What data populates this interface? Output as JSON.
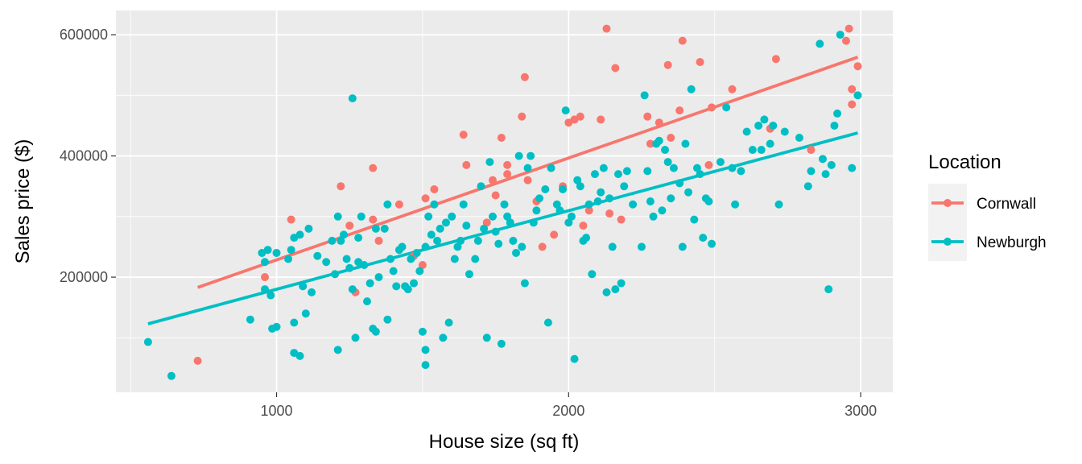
{
  "chart_data": {
    "type": "scatter",
    "xlabel": "House size (sq ft)",
    "ylabel": "Sales price ($)",
    "xlim": [
      450,
      3110
    ],
    "ylim": [
      10000,
      640000
    ],
    "x_ticks": [
      1000,
      2000,
      3000
    ],
    "x_tick_labels": [
      "1000",
      "2000",
      "3000"
    ],
    "y_ticks": [
      200000,
      400000,
      600000
    ],
    "y_tick_labels": [
      "200000",
      "400000",
      "600000"
    ],
    "grid": true,
    "legend": {
      "title": "Location",
      "position": "right"
    },
    "series": [
      {
        "name": "Cornwall",
        "color": "#F8766D",
        "points": [
          [
            730,
            62000
          ],
          [
            960,
            200000
          ],
          [
            1050,
            295000
          ],
          [
            1220,
            350000
          ],
          [
            1250,
            285000
          ],
          [
            1270,
            175000
          ],
          [
            1330,
            380000
          ],
          [
            1330,
            295000
          ],
          [
            1350,
            260000
          ],
          [
            1420,
            320000
          ],
          [
            1470,
            235000
          ],
          [
            1500,
            220000
          ],
          [
            1510,
            330000
          ],
          [
            1540,
            345000
          ],
          [
            1640,
            435000
          ],
          [
            1650,
            385000
          ],
          [
            1720,
            290000
          ],
          [
            1740,
            360000
          ],
          [
            1750,
            335000
          ],
          [
            1770,
            430000
          ],
          [
            1790,
            385000
          ],
          [
            1790,
            370000
          ],
          [
            1840,
            465000
          ],
          [
            1850,
            530000
          ],
          [
            1860,
            360000
          ],
          [
            1890,
            325000
          ],
          [
            1910,
            250000
          ],
          [
            1950,
            270000
          ],
          [
            1980,
            350000
          ],
          [
            2000,
            455000
          ],
          [
            2020,
            460000
          ],
          [
            2040,
            465000
          ],
          [
            2050,
            285000
          ],
          [
            2070,
            310000
          ],
          [
            2110,
            460000
          ],
          [
            2130,
            610000
          ],
          [
            2140,
            305000
          ],
          [
            2160,
            545000
          ],
          [
            2180,
            295000
          ],
          [
            2270,
            465000
          ],
          [
            2280,
            420000
          ],
          [
            2310,
            455000
          ],
          [
            2340,
            550000
          ],
          [
            2350,
            430000
          ],
          [
            2380,
            475000
          ],
          [
            2390,
            590000
          ],
          [
            2450,
            555000
          ],
          [
            2480,
            385000
          ],
          [
            2490,
            480000
          ],
          [
            2560,
            510000
          ],
          [
            2690,
            445000
          ],
          [
            2710,
            560000
          ],
          [
            2830,
            410000
          ],
          [
            2950,
            590000
          ],
          [
            2960,
            610000
          ],
          [
            2970,
            510000
          ],
          [
            2970,
            485000
          ],
          [
            2990,
            548000
          ]
        ],
        "fit": [
          [
            730,
            183000
          ],
          [
            2990,
            563000
          ]
        ]
      },
      {
        "name": "Newburgh",
        "color": "#00BFC4",
        "points": [
          [
            560,
            93000
          ],
          [
            640,
            37000
          ],
          [
            910,
            130000
          ],
          [
            950,
            240000
          ],
          [
            960,
            225000
          ],
          [
            960,
            180000
          ],
          [
            970,
            245000
          ],
          [
            980,
            170000
          ],
          [
            985,
            115000
          ],
          [
            1000,
            118000
          ],
          [
            1000,
            240000
          ],
          [
            1040,
            230000
          ],
          [
            1050,
            245000
          ],
          [
            1060,
            265000
          ],
          [
            1060,
            75000
          ],
          [
            1060,
            125000
          ],
          [
            1080,
            70000
          ],
          [
            1080,
            270000
          ],
          [
            1090,
            185000
          ],
          [
            1100,
            140000
          ],
          [
            1110,
            280000
          ],
          [
            1120,
            175000
          ],
          [
            1140,
            235000
          ],
          [
            1170,
            225000
          ],
          [
            1190,
            260000
          ],
          [
            1200,
            205000
          ],
          [
            1210,
            80000
          ],
          [
            1210,
            300000
          ],
          [
            1220,
            260000
          ],
          [
            1230,
            270000
          ],
          [
            1240,
            230000
          ],
          [
            1250,
            215000
          ],
          [
            1260,
            180000
          ],
          [
            1260,
            495000
          ],
          [
            1270,
            100000
          ],
          [
            1280,
            265000
          ],
          [
            1280,
            225000
          ],
          [
            1290,
            300000
          ],
          [
            1300,
            220000
          ],
          [
            1310,
            160000
          ],
          [
            1320,
            190000
          ],
          [
            1330,
            115000
          ],
          [
            1340,
            110000
          ],
          [
            1340,
            280000
          ],
          [
            1350,
            200000
          ],
          [
            1370,
            280000
          ],
          [
            1380,
            320000
          ],
          [
            1380,
            130000
          ],
          [
            1390,
            230000
          ],
          [
            1400,
            210000
          ],
          [
            1410,
            185000
          ],
          [
            1420,
            245000
          ],
          [
            1430,
            250000
          ],
          [
            1440,
            185000
          ],
          [
            1450,
            180000
          ],
          [
            1460,
            230000
          ],
          [
            1470,
            190000
          ],
          [
            1480,
            240000
          ],
          [
            1490,
            210000
          ],
          [
            1500,
            110000
          ],
          [
            1510,
            55000
          ],
          [
            1510,
            80000
          ],
          [
            1510,
            250000
          ],
          [
            1520,
            300000
          ],
          [
            1530,
            270000
          ],
          [
            1540,
            320000
          ],
          [
            1550,
            260000
          ],
          [
            1560,
            280000
          ],
          [
            1570,
            100000
          ],
          [
            1580,
            290000
          ],
          [
            1590,
            125000
          ],
          [
            1600,
            300000
          ],
          [
            1610,
            230000
          ],
          [
            1620,
            250000
          ],
          [
            1630,
            260000
          ],
          [
            1640,
            320000
          ],
          [
            1650,
            285000
          ],
          [
            1660,
            205000
          ],
          [
            1680,
            230000
          ],
          [
            1690,
            260000
          ],
          [
            1700,
            350000
          ],
          [
            1710,
            280000
          ],
          [
            1720,
            100000
          ],
          [
            1730,
            390000
          ],
          [
            1740,
            300000
          ],
          [
            1750,
            275000
          ],
          [
            1760,
            255000
          ],
          [
            1770,
            90000
          ],
          [
            1780,
            320000
          ],
          [
            1790,
            300000
          ],
          [
            1800,
            290000
          ],
          [
            1810,
            260000
          ],
          [
            1820,
            240000
          ],
          [
            1830,
            400000
          ],
          [
            1840,
            250000
          ],
          [
            1850,
            190000
          ],
          [
            1860,
            380000
          ],
          [
            1870,
            400000
          ],
          [
            1880,
            290000
          ],
          [
            1890,
            310000
          ],
          [
            1900,
            330000
          ],
          [
            1920,
            345000
          ],
          [
            1930,
            125000
          ],
          [
            1940,
            380000
          ],
          [
            1960,
            320000
          ],
          [
            1970,
            310000
          ],
          [
            1980,
            345000
          ],
          [
            1990,
            475000
          ],
          [
            2000,
            290000
          ],
          [
            2010,
            300000
          ],
          [
            2020,
            65000
          ],
          [
            2030,
            360000
          ],
          [
            2040,
            350000
          ],
          [
            2050,
            260000
          ],
          [
            2060,
            265000
          ],
          [
            2070,
            320000
          ],
          [
            2080,
            205000
          ],
          [
            2090,
            370000
          ],
          [
            2100,
            325000
          ],
          [
            2110,
            340000
          ],
          [
            2120,
            380000
          ],
          [
            2130,
            175000
          ],
          [
            2140,
            330000
          ],
          [
            2150,
            250000
          ],
          [
            2160,
            180000
          ],
          [
            2170,
            370000
          ],
          [
            2180,
            190000
          ],
          [
            2190,
            350000
          ],
          [
            2200,
            375000
          ],
          [
            2220,
            320000
          ],
          [
            2250,
            250000
          ],
          [
            2260,
            500000
          ],
          [
            2270,
            375000
          ],
          [
            2280,
            325000
          ],
          [
            2290,
            300000
          ],
          [
            2300,
            420000
          ],
          [
            2310,
            425000
          ],
          [
            2320,
            310000
          ],
          [
            2330,
            410000
          ],
          [
            2340,
            390000
          ],
          [
            2350,
            330000
          ],
          [
            2360,
            380000
          ],
          [
            2380,
            355000
          ],
          [
            2390,
            250000
          ],
          [
            2400,
            420000
          ],
          [
            2410,
            340000
          ],
          [
            2420,
            510000
          ],
          [
            2430,
            295000
          ],
          [
            2440,
            380000
          ],
          [
            2450,
            370000
          ],
          [
            2460,
            265000
          ],
          [
            2470,
            330000
          ],
          [
            2480,
            325000
          ],
          [
            2490,
            255000
          ],
          [
            2520,
            390000
          ],
          [
            2540,
            480000
          ],
          [
            2560,
            380000
          ],
          [
            2570,
            320000
          ],
          [
            2590,
            375000
          ],
          [
            2610,
            440000
          ],
          [
            2630,
            410000
          ],
          [
            2650,
            450000
          ],
          [
            2660,
            410000
          ],
          [
            2670,
            460000
          ],
          [
            2690,
            420000
          ],
          [
            2700,
            450000
          ],
          [
            2720,
            320000
          ],
          [
            2740,
            440000
          ],
          [
            2790,
            430000
          ],
          [
            2820,
            350000
          ],
          [
            2830,
            375000
          ],
          [
            2860,
            585000
          ],
          [
            2870,
            395000
          ],
          [
            2880,
            370000
          ],
          [
            2890,
            180000
          ],
          [
            2900,
            385000
          ],
          [
            2910,
            450000
          ],
          [
            2920,
            470000
          ],
          [
            2930,
            600000
          ],
          [
            2970,
            380000
          ],
          [
            2990,
            500000
          ]
        ],
        "fit": [
          [
            560,
            123000
          ],
          [
            2990,
            438000
          ]
        ]
      }
    ]
  }
}
